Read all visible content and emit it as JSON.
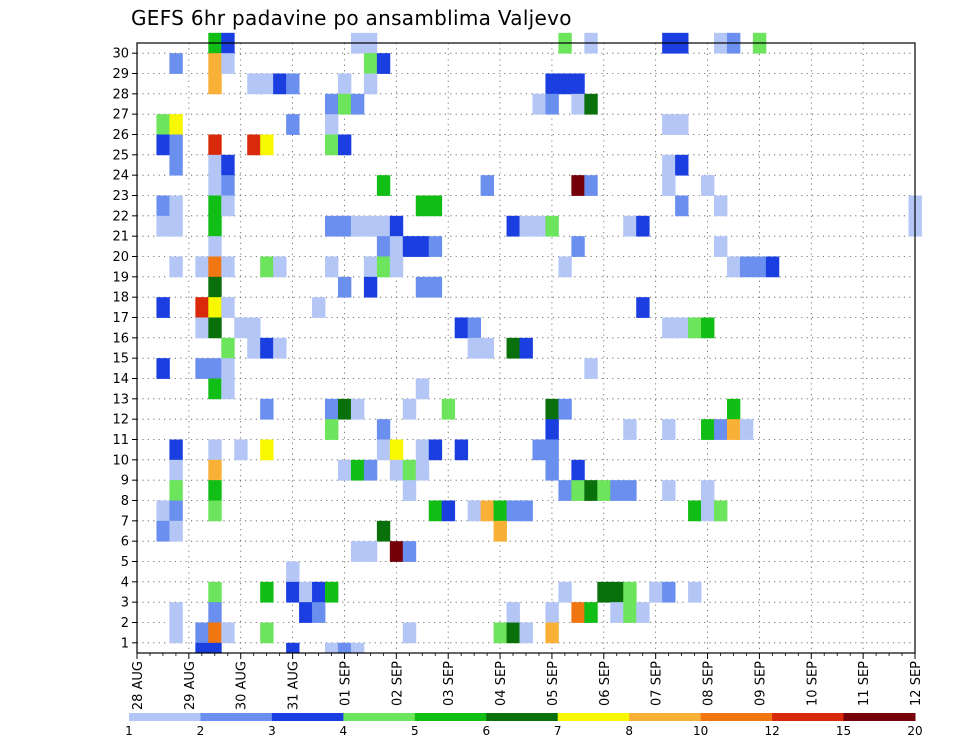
{
  "chart_data": {
    "type": "heatmap",
    "title": "GEFS 6hr padavine po ansamblima Valjevo",
    "x_tick_labels": [
      "28 AUG",
      "29 AUG",
      "30 AUG",
      "31 AUG",
      "01 SEP",
      "02 SEP",
      "03 SEP",
      "04 SEP",
      "05 SEP",
      "06 SEP",
      "07 SEP",
      "08 SEP",
      "09 SEP",
      "10 SEP",
      "11 SEP",
      "12 SEP"
    ],
    "y_tick_labels": [
      "1",
      "2",
      "3",
      "4",
      "5",
      "6",
      "7",
      "8",
      "9",
      "10",
      "11",
      "12",
      "13",
      "14",
      "15",
      "16",
      "17",
      "18",
      "19",
      "20",
      "21",
      "22",
      "23",
      "24",
      "25",
      "26",
      "27",
      "28",
      "29",
      "30"
    ],
    "steps_per_day": 4,
    "n_steps": 61,
    "n_members": 30,
    "grid": true,
    "legend": {
      "placement": "bottom",
      "labels": [
        "1",
        "2",
        "3",
        "4",
        "5",
        "6",
        "7",
        "8",
        "10",
        "12",
        "15",
        "20"
      ],
      "colors": [
        "#b4c6f6",
        "#6b8fee",
        "#1a3ee0",
        "#6ce45c",
        "#10be16",
        "#0a700c",
        "#f8f800",
        "#f8b036",
        "#f07612",
        "#d82a0a",
        "#76000a"
      ]
    },
    "cells": [
      [
        30,
        6,
        "#10be16"
      ],
      [
        30,
        7,
        "#1a3ee0"
      ],
      [
        30,
        17,
        "#b4c6f6"
      ],
      [
        30,
        18,
        "#b4c6f6"
      ],
      [
        30,
        33,
        "#6ce45c"
      ],
      [
        30,
        35,
        "#b4c6f6"
      ],
      [
        30,
        41,
        "#1a3ee0"
      ],
      [
        30,
        42,
        "#1a3ee0"
      ],
      [
        30,
        45,
        "#b4c6f6"
      ],
      [
        30,
        46,
        "#6b8fee"
      ],
      [
        30,
        48,
        "#6ce45c"
      ],
      [
        29,
        3,
        "#6b8fee"
      ],
      [
        29,
        6,
        "#f8b036"
      ],
      [
        29,
        7,
        "#b4c6f6"
      ],
      [
        29,
        18,
        "#6ce45c"
      ],
      [
        29,
        19,
        "#1a3ee0"
      ],
      [
        28,
        6,
        "#f8b036"
      ],
      [
        28,
        9,
        "#b4c6f6"
      ],
      [
        28,
        10,
        "#b4c6f6"
      ],
      [
        28,
        11,
        "#1a3ee0"
      ],
      [
        28,
        12,
        "#6b8fee"
      ],
      [
        28,
        16,
        "#b4c6f6"
      ],
      [
        28,
        18,
        "#b4c6f6"
      ],
      [
        28,
        32,
        "#1a3ee0"
      ],
      [
        28,
        33,
        "#1a3ee0"
      ],
      [
        28,
        34,
        "#1a3ee0"
      ],
      [
        27,
        15,
        "#6b8fee"
      ],
      [
        27,
        16,
        "#6ce45c"
      ],
      [
        27,
        17,
        "#6b8fee"
      ],
      [
        27,
        31,
        "#b4c6f6"
      ],
      [
        27,
        32,
        "#6b8fee"
      ],
      [
        27,
        34,
        "#b4c6f6"
      ],
      [
        27,
        35,
        "#0a700c"
      ],
      [
        26,
        2,
        "#6ce45c"
      ],
      [
        26,
        3,
        "#f8f800"
      ],
      [
        26,
        12,
        "#6b8fee"
      ],
      [
        26,
        15,
        "#b4c6f6"
      ],
      [
        26,
        41,
        "#b4c6f6"
      ],
      [
        26,
        42,
        "#b4c6f6"
      ],
      [
        25,
        2,
        "#1a3ee0"
      ],
      [
        25,
        3,
        "#6b8fee"
      ],
      [
        25,
        6,
        "#d82a0a"
      ],
      [
        25,
        9,
        "#d82a0a"
      ],
      [
        25,
        10,
        "#f8f800"
      ],
      [
        25,
        15,
        "#6ce45c"
      ],
      [
        25,
        16,
        "#1a3ee0"
      ],
      [
        24,
        3,
        "#6b8fee"
      ],
      [
        24,
        6,
        "#b4c6f6"
      ],
      [
        24,
        7,
        "#1a3ee0"
      ],
      [
        24,
        41,
        "#b4c6f6"
      ],
      [
        24,
        42,
        "#1a3ee0"
      ],
      [
        23,
        6,
        "#b4c6f6"
      ],
      [
        23,
        7,
        "#6b8fee"
      ],
      [
        23,
        19,
        "#10be16"
      ],
      [
        23,
        27,
        "#6b8fee"
      ],
      [
        23,
        34,
        "#76000a"
      ],
      [
        23,
        35,
        "#6b8fee"
      ],
      [
        23,
        41,
        "#b4c6f6"
      ],
      [
        23,
        44,
        "#b4c6f6"
      ],
      [
        22,
        2,
        "#6b8fee"
      ],
      [
        22,
        3,
        "#b4c6f6"
      ],
      [
        22,
        6,
        "#10be16"
      ],
      [
        22,
        7,
        "#b4c6f6"
      ],
      [
        22,
        22,
        "#10be16"
      ],
      [
        22,
        23,
        "#10be16"
      ],
      [
        22,
        42,
        "#6b8fee"
      ],
      [
        22,
        45,
        "#b4c6f6"
      ],
      [
        22,
        60,
        "#b4c6f6"
      ],
      [
        21,
        2,
        "#b4c6f6"
      ],
      [
        21,
        3,
        "#b4c6f6"
      ],
      [
        21,
        6,
        "#10be16"
      ],
      [
        21,
        15,
        "#6b8fee"
      ],
      [
        21,
        16,
        "#6b8fee"
      ],
      [
        21,
        17,
        "#b4c6f6"
      ],
      [
        21,
        18,
        "#b4c6f6"
      ],
      [
        21,
        19,
        "#b4c6f6"
      ],
      [
        21,
        20,
        "#1a3ee0"
      ],
      [
        21,
        29,
        "#1a3ee0"
      ],
      [
        21,
        30,
        "#b4c6f6"
      ],
      [
        21,
        31,
        "#b4c6f6"
      ],
      [
        21,
        32,
        "#6ce45c"
      ],
      [
        21,
        38,
        "#b4c6f6"
      ],
      [
        21,
        39,
        "#1a3ee0"
      ],
      [
        21,
        60,
        "#b4c6f6"
      ],
      [
        20,
        6,
        "#b4c6f6"
      ],
      [
        20,
        19,
        "#6b8fee"
      ],
      [
        20,
        20,
        "#b4c6f6"
      ],
      [
        20,
        21,
        "#1a3ee0"
      ],
      [
        20,
        22,
        "#1a3ee0"
      ],
      [
        20,
        23,
        "#6b8fee"
      ],
      [
        20,
        34,
        "#6b8fee"
      ],
      [
        20,
        45,
        "#b4c6f6"
      ],
      [
        19,
        3,
        "#b4c6f6"
      ],
      [
        19,
        5,
        "#b4c6f6"
      ],
      [
        19,
        6,
        "#f07612"
      ],
      [
        19,
        7,
        "#b4c6f6"
      ],
      [
        19,
        10,
        "#6ce45c"
      ],
      [
        19,
        11,
        "#b4c6f6"
      ],
      [
        19,
        15,
        "#b4c6f6"
      ],
      [
        19,
        18,
        "#b4c6f6"
      ],
      [
        19,
        19,
        "#6ce45c"
      ],
      [
        19,
        20,
        "#b4c6f6"
      ],
      [
        19,
        33,
        "#b4c6f6"
      ],
      [
        19,
        46,
        "#b4c6f6"
      ],
      [
        19,
        47,
        "#6b8fee"
      ],
      [
        19,
        48,
        "#6b8fee"
      ],
      [
        19,
        49,
        "#1a3ee0"
      ],
      [
        18,
        6,
        "#0a700c"
      ],
      [
        18,
        16,
        "#6b8fee"
      ],
      [
        18,
        18,
        "#1a3ee0"
      ],
      [
        18,
        22,
        "#6b8fee"
      ],
      [
        18,
        23,
        "#6b8fee"
      ],
      [
        17,
        2,
        "#1a3ee0"
      ],
      [
        17,
        5,
        "#d82a0a"
      ],
      [
        17,
        6,
        "#f8f800"
      ],
      [
        17,
        7,
        "#b4c6f6"
      ],
      [
        17,
        14,
        "#b4c6f6"
      ],
      [
        17,
        39,
        "#1a3ee0"
      ],
      [
        16,
        5,
        "#b4c6f6"
      ],
      [
        16,
        6,
        "#0a700c"
      ],
      [
        16,
        8,
        "#b4c6f6"
      ],
      [
        16,
        9,
        "#b4c6f6"
      ],
      [
        16,
        25,
        "#1a3ee0"
      ],
      [
        16,
        26,
        "#6b8fee"
      ],
      [
        16,
        41,
        "#b4c6f6"
      ],
      [
        16,
        42,
        "#b4c6f6"
      ],
      [
        16,
        43,
        "#6ce45c"
      ],
      [
        16,
        44,
        "#10be16"
      ],
      [
        15,
        7,
        "#6ce45c"
      ],
      [
        15,
        9,
        "#b4c6f6"
      ],
      [
        15,
        10,
        "#1a3ee0"
      ],
      [
        15,
        11,
        "#b4c6f6"
      ],
      [
        15,
        26,
        "#b4c6f6"
      ],
      [
        15,
        27,
        "#b4c6f6"
      ],
      [
        15,
        29,
        "#0a700c"
      ],
      [
        15,
        30,
        "#1a3ee0"
      ],
      [
        14,
        2,
        "#1a3ee0"
      ],
      [
        14,
        5,
        "#6b8fee"
      ],
      [
        14,
        6,
        "#6b8fee"
      ],
      [
        14,
        7,
        "#b4c6f6"
      ],
      [
        14,
        35,
        "#b4c6f6"
      ],
      [
        13,
        6,
        "#10be16"
      ],
      [
        13,
        7,
        "#b4c6f6"
      ],
      [
        13,
        22,
        "#b4c6f6"
      ],
      [
        12,
        10,
        "#6b8fee"
      ],
      [
        12,
        15,
        "#6b8fee"
      ],
      [
        12,
        16,
        "#0a700c"
      ],
      [
        12,
        17,
        "#b4c6f6"
      ],
      [
        12,
        21,
        "#b4c6f6"
      ],
      [
        12,
        24,
        "#6ce45c"
      ],
      [
        12,
        32,
        "#0a700c"
      ],
      [
        12,
        33,
        "#6b8fee"
      ],
      [
        12,
        46,
        "#10be16"
      ],
      [
        11,
        15,
        "#6ce45c"
      ],
      [
        11,
        19,
        "#6b8fee"
      ],
      [
        11,
        32,
        "#1a3ee0"
      ],
      [
        11,
        38,
        "#b4c6f6"
      ],
      [
        11,
        41,
        "#b4c6f6"
      ],
      [
        11,
        44,
        "#10be16"
      ],
      [
        11,
        45,
        "#6b8fee"
      ],
      [
        11,
        46,
        "#f8b036"
      ],
      [
        11,
        47,
        "#b4c6f6"
      ],
      [
        10,
        3,
        "#1a3ee0"
      ],
      [
        10,
        6,
        "#b4c6f6"
      ],
      [
        10,
        8,
        "#b4c6f6"
      ],
      [
        10,
        10,
        "#f8f800"
      ],
      [
        10,
        19,
        "#b4c6f6"
      ],
      [
        10,
        20,
        "#f8f800"
      ],
      [
        10,
        22,
        "#b4c6f6"
      ],
      [
        10,
        23,
        "#1a3ee0"
      ],
      [
        10,
        25,
        "#1a3ee0"
      ],
      [
        10,
        31,
        "#6b8fee"
      ],
      [
        10,
        32,
        "#6b8fee"
      ],
      [
        9,
        3,
        "#b4c6f6"
      ],
      [
        9,
        6,
        "#f8b036"
      ],
      [
        9,
        16,
        "#b4c6f6"
      ],
      [
        9,
        17,
        "#10be16"
      ],
      [
        9,
        18,
        "#6b8fee"
      ],
      [
        9,
        20,
        "#b4c6f6"
      ],
      [
        9,
        21,
        "#6ce45c"
      ],
      [
        9,
        22,
        "#b4c6f6"
      ],
      [
        9,
        32,
        "#6b8fee"
      ],
      [
        9,
        34,
        "#1a3ee0"
      ],
      [
        8,
        3,
        "#6ce45c"
      ],
      [
        8,
        6,
        "#10be16"
      ],
      [
        8,
        21,
        "#b4c6f6"
      ],
      [
        8,
        33,
        "#6b8fee"
      ],
      [
        8,
        34,
        "#6ce45c"
      ],
      [
        8,
        35,
        "#0a700c"
      ],
      [
        8,
        36,
        "#6ce45c"
      ],
      [
        8,
        37,
        "#6b8fee"
      ],
      [
        8,
        38,
        "#6b8fee"
      ],
      [
        8,
        41,
        "#b4c6f6"
      ],
      [
        8,
        44,
        "#b4c6f6"
      ],
      [
        7,
        2,
        "#b4c6f6"
      ],
      [
        7,
        3,
        "#6b8fee"
      ],
      [
        7,
        6,
        "#6ce45c"
      ],
      [
        7,
        23,
        "#10be16"
      ],
      [
        7,
        24,
        "#1a3ee0"
      ],
      [
        7,
        26,
        "#b4c6f6"
      ],
      [
        7,
        27,
        "#f8b036"
      ],
      [
        7,
        28,
        "#10be16"
      ],
      [
        7,
        29,
        "#6b8fee"
      ],
      [
        7,
        30,
        "#6b8fee"
      ],
      [
        7,
        43,
        "#10be16"
      ],
      [
        7,
        44,
        "#b4c6f6"
      ],
      [
        7,
        45,
        "#6ce45c"
      ],
      [
        6,
        2,
        "#6b8fee"
      ],
      [
        6,
        3,
        "#b4c6f6"
      ],
      [
        6,
        19,
        "#0a700c"
      ],
      [
        6,
        28,
        "#f8b036"
      ],
      [
        5,
        17,
        "#b4c6f6"
      ],
      [
        5,
        18,
        "#b4c6f6"
      ],
      [
        5,
        20,
        "#76000a"
      ],
      [
        5,
        21,
        "#6b8fee"
      ],
      [
        4,
        12,
        "#b4c6f6"
      ],
      [
        3,
        6,
        "#6ce45c"
      ],
      [
        3,
        10,
        "#10be16"
      ],
      [
        3,
        12,
        "#1a3ee0"
      ],
      [
        3,
        13,
        "#b4c6f6"
      ],
      [
        3,
        14,
        "#1a3ee0"
      ],
      [
        3,
        15,
        "#10be16"
      ],
      [
        3,
        33,
        "#b4c6f6"
      ],
      [
        3,
        36,
        "#0a700c"
      ],
      [
        3,
        37,
        "#0a700c"
      ],
      [
        3,
        38,
        "#6ce45c"
      ],
      [
        3,
        40,
        "#b4c6f6"
      ],
      [
        3,
        41,
        "#6b8fee"
      ],
      [
        3,
        43,
        "#b4c6f6"
      ],
      [
        2,
        3,
        "#b4c6f6"
      ],
      [
        2,
        6,
        "#6b8fee"
      ],
      [
        2,
        13,
        "#1a3ee0"
      ],
      [
        2,
        14,
        "#6b8fee"
      ],
      [
        2,
        29,
        "#b4c6f6"
      ],
      [
        2,
        32,
        "#b4c6f6"
      ],
      [
        2,
        34,
        "#f07612"
      ],
      [
        2,
        35,
        "#10be16"
      ],
      [
        2,
        37,
        "#b4c6f6"
      ],
      [
        2,
        38,
        "#6ce45c"
      ],
      [
        2,
        39,
        "#b4c6f6"
      ],
      [
        1,
        3,
        "#b4c6f6"
      ],
      [
        1,
        5,
        "#6b8fee"
      ],
      [
        1,
        6,
        "#f07612"
      ],
      [
        1,
        7,
        "#b4c6f6"
      ],
      [
        1,
        10,
        "#6ce45c"
      ],
      [
        1,
        21,
        "#b4c6f6"
      ],
      [
        1,
        28,
        "#6ce45c"
      ],
      [
        1,
        29,
        "#0a700c"
      ],
      [
        1,
        30,
        "#b4c6f6"
      ],
      [
        1,
        32,
        "#f8b036"
      ],
      [
        0,
        5,
        "#1a3ee0"
      ],
      [
        0,
        6,
        "#1a3ee0"
      ],
      [
        0,
        12,
        "#1a3ee0"
      ],
      [
        0,
        15,
        "#b4c6f6"
      ],
      [
        0,
        16,
        "#6b8fee"
      ],
      [
        0,
        17,
        "#b4c6f6"
      ]
    ]
  }
}
